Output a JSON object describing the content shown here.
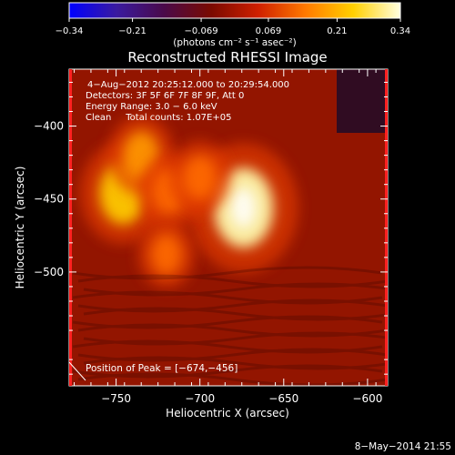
{
  "chart_data": {
    "type": "heatmap",
    "title": "Reconstructed RHESSI Image",
    "xlabel": "Heliocentric X (arcsec)",
    "ylabel": "Heliocentric Y (arcsec)",
    "xlim": [
      -778,
      -588
    ],
    "ylim": [
      -578,
      -361
    ],
    "x_ticks": [
      -750,
      -700,
      -650,
      -600
    ],
    "x_tick_labels": [
      "−750",
      "−700",
      "−650",
      "−600"
    ],
    "y_ticks": [
      -400,
      -450,
      -500
    ],
    "y_tick_labels": [
      "−400",
      "−450",
      "−500"
    ],
    "colorbar": {
      "range": [
        -0.34,
        0.34
      ],
      "ticks": [
        -0.34,
        -0.21,
        -0.069,
        0.069,
        0.21,
        0.34
      ],
      "tick_labels": [
        "−0.34",
        "−0.21",
        "−0.069",
        "0.069",
        "0.21",
        "0.34"
      ],
      "unit_label": "(photons cm⁻² s⁻¹ asec⁻²)",
      "colormap_stops": [
        "#0000ff",
        "#3a1aa0",
        "#4a0a4a",
        "#7a0a00",
        "#d02000",
        "#ff7a00",
        "#ffd000",
        "#ffffe0"
      ]
    },
    "info_lines": [
      "4−Aug−2012 20:25:12.000 to 20:29:54.000",
      "Detectors: 3F 5F 6F 7F 8F 9F, Att 0",
      "Energy Range: 3.0 − 6.0 keV",
      "Clean     Total counts: 1.07E+05"
    ],
    "sources": [
      {
        "x": -674,
        "y": -456,
        "peak": 0.34
      },
      {
        "x": -746,
        "y": -446,
        "peak": 0.24
      },
      {
        "x": -735,
        "y": -420,
        "peak": 0.16
      },
      {
        "x": -718,
        "y": -445,
        "peak": 0.15
      },
      {
        "x": -700,
        "y": -435,
        "peak": 0.14
      },
      {
        "x": -720,
        "y": -488,
        "peak": 0.12
      }
    ],
    "peak_annotation": "Position of Peak = [−674,−456]",
    "grid": false
  },
  "footer": {
    "date": "8−May−2014 21:55"
  }
}
